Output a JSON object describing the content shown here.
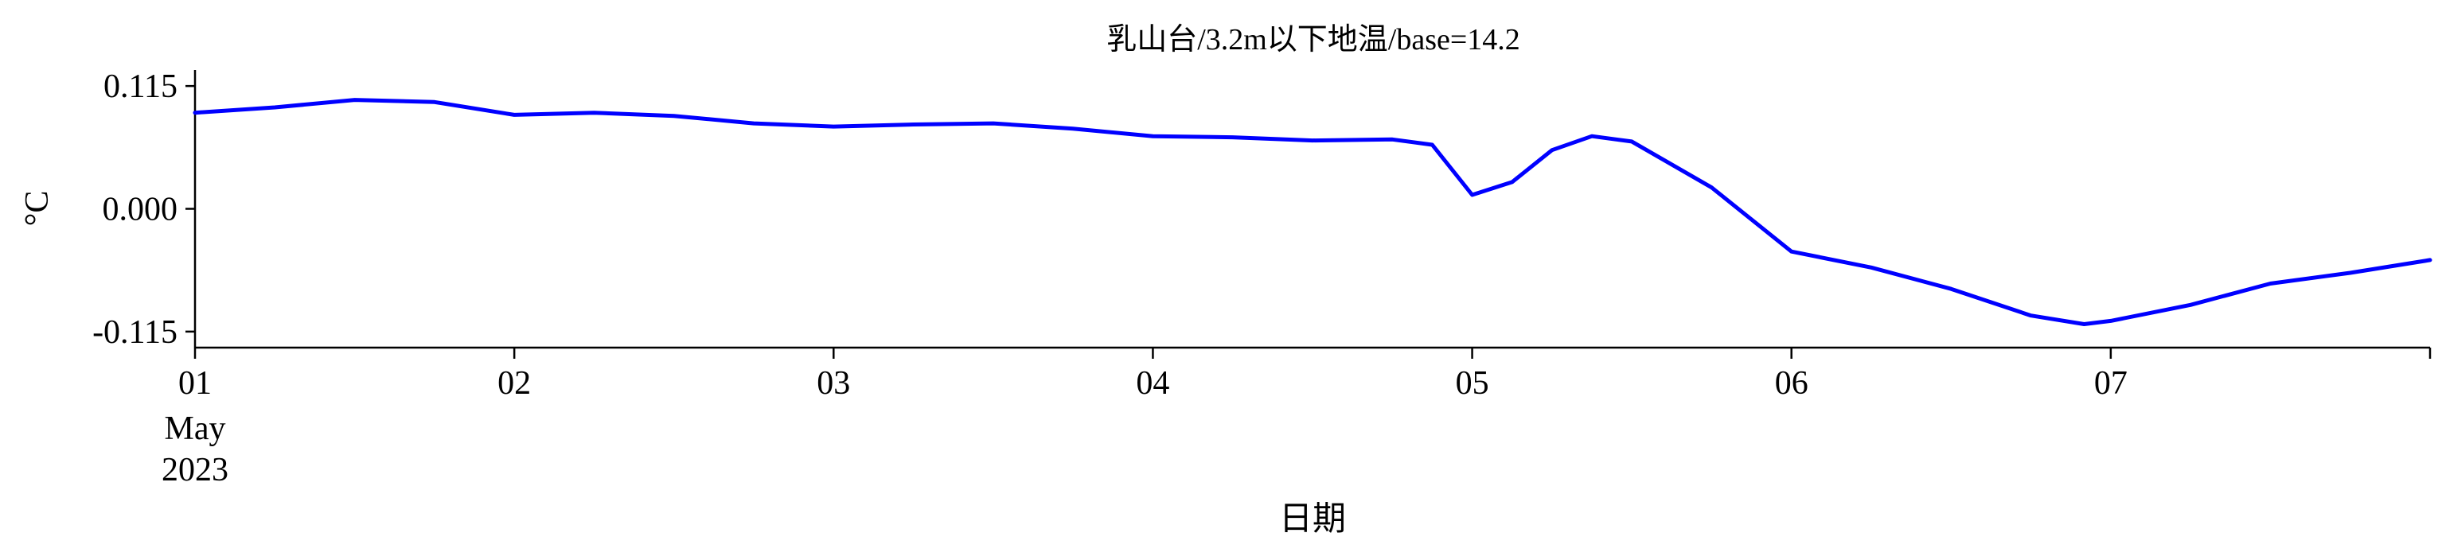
{
  "chart_data": {
    "type": "line",
    "title": "乳山台/3.2m以下地温/base=14.2",
    "xlabel": "日期",
    "ylabel": "°C",
    "x_tick_labels": [
      "01",
      "02",
      "03",
      "04",
      "05",
      "06",
      "07"
    ],
    "x_tick_sublabels": [
      "May",
      "2023"
    ],
    "y_tick_labels": [
      "-0.115",
      "0.000",
      "0.115"
    ],
    "y_ticks": [
      -0.115,
      0.0,
      0.115
    ],
    "xlim": [
      "2023-05-01",
      "2023-05-08"
    ],
    "ylim": [
      -0.13,
      0.13
    ],
    "grid": false,
    "line_color": "#0000ff",
    "series": [
      {
        "x": [
          "2023-05-01 00:00",
          "2023-05-01 06:00",
          "2023-05-01 12:00",
          "2023-05-01 18:00",
          "2023-05-02 00:00",
          "2023-05-02 06:00",
          "2023-05-02 12:00",
          "2023-05-02 18:00",
          "2023-05-03 00:00",
          "2023-05-03 06:00",
          "2023-05-03 12:00",
          "2023-05-03 18:00",
          "2023-05-04 00:00",
          "2023-05-04 06:00",
          "2023-05-04 12:00",
          "2023-05-04 18:00",
          "2023-05-04 21:00",
          "2023-05-05 00:00",
          "2023-05-05 03:00",
          "2023-05-05 06:00",
          "2023-05-05 09:00",
          "2023-05-05 12:00",
          "2023-05-05 18:00",
          "2023-05-06 00:00",
          "2023-05-06 06:00",
          "2023-05-06 12:00",
          "2023-05-06 18:00",
          "2023-05-06 22:00",
          "2023-05-07 00:00",
          "2023-05-07 06:00",
          "2023-05-07 12:00",
          "2023-05-07 18:00",
          "2023-05-08 00:00"
        ],
        "values": [
          0.09,
          0.095,
          0.102,
          0.1,
          0.088,
          0.09,
          0.087,
          0.08,
          0.077,
          0.079,
          0.08,
          0.075,
          0.068,
          0.067,
          0.064,
          0.065,
          0.06,
          0.013,
          0.025,
          0.055,
          0.068,
          0.063,
          0.02,
          -0.04,
          -0.055,
          -0.075,
          -0.1,
          -0.108,
          -0.105,
          -0.09,
          -0.07,
          -0.06,
          -0.048
        ]
      }
    ]
  }
}
